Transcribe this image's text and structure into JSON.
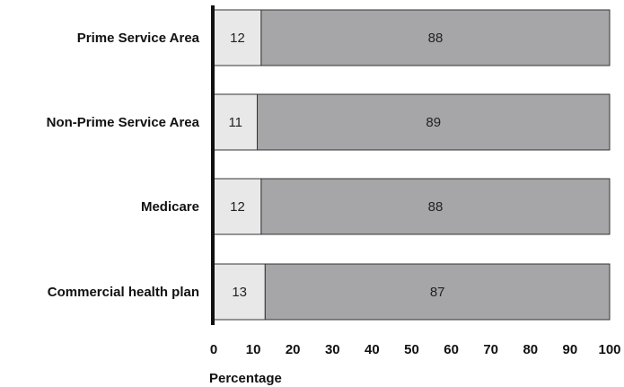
{
  "chart_data": {
    "type": "bar",
    "orientation": "horizontal",
    "stacked": true,
    "title": "",
    "xlabel": "Percentage",
    "ylabel": "",
    "xlim": [
      0,
      100
    ],
    "xticks": [
      "0",
      "10",
      "20",
      "30",
      "40",
      "50",
      "60",
      "70",
      "80",
      "90",
      "100"
    ],
    "grid": false,
    "legend": "none",
    "categories": [
      "Prime Service Area",
      "Non-Prime Service Area",
      "Medicare",
      "Commercial health plan"
    ],
    "series": [
      {
        "values": [
          12,
          11,
          12,
          13
        ],
        "color": "#e8e8e8"
      },
      {
        "values": [
          88,
          89,
          88,
          87
        ],
        "color": "#a6a6a8"
      }
    ]
  }
}
